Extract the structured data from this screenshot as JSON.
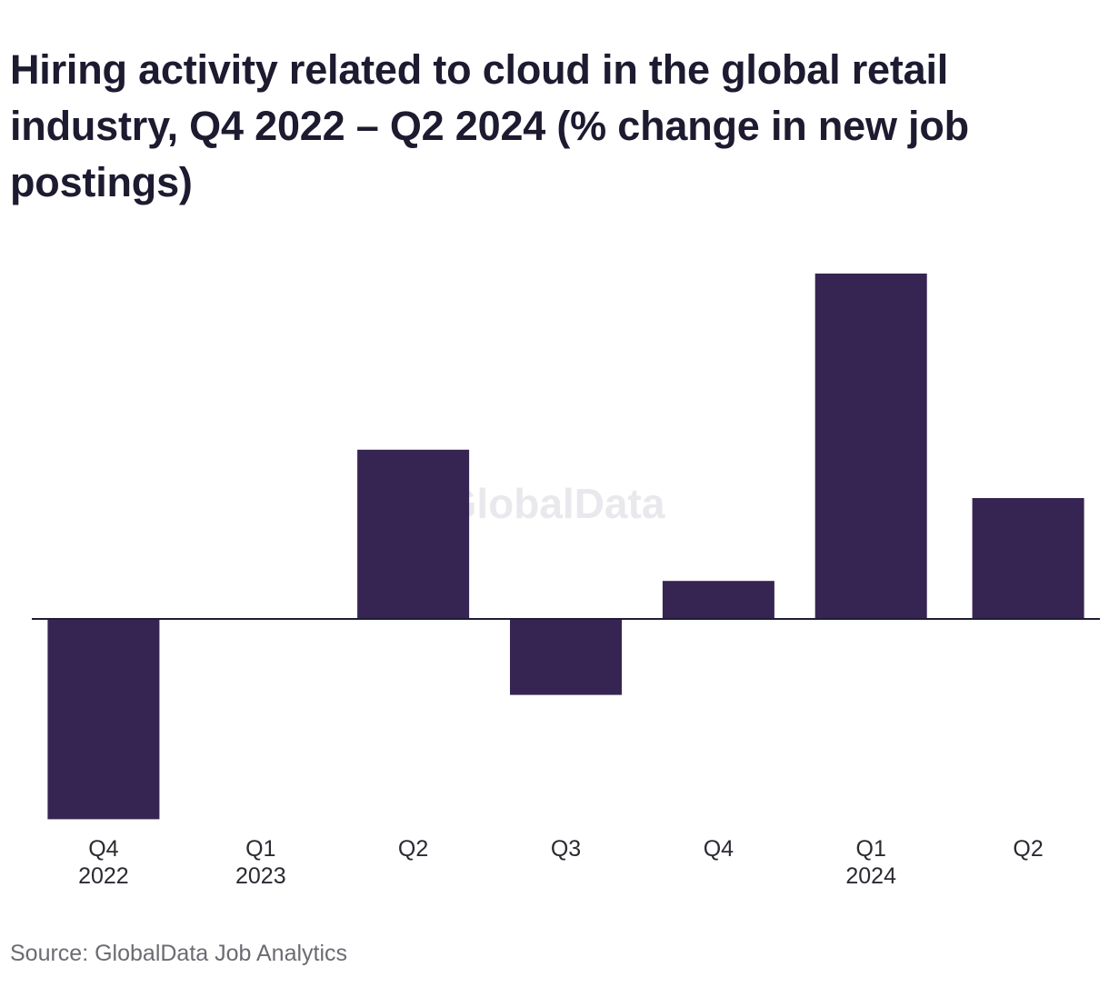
{
  "title": "Hiring activity related to cloud in the global retail industry, Q4 2022 – Q2 2024 (% change in new job postings)",
  "source": "Source: GlobalData Job Analytics",
  "watermark": "GlobalData",
  "colors": {
    "bar": "#362552",
    "axis": "#1f1d33",
    "watermark": "#e9e8ec"
  },
  "chart_data": {
    "type": "bar",
    "title": "Hiring activity related to cloud in the global retail industry, Q4 2022 – Q2 2024 (% change in new job postings)",
    "categories": [
      [
        "Q4",
        "2022"
      ],
      [
        "Q1",
        "2023"
      ],
      [
        "Q2",
        ""
      ],
      [
        "Q3",
        ""
      ],
      [
        "Q4",
        ""
      ],
      [
        "Q1",
        "2024"
      ],
      [
        "Q2",
        ""
      ]
    ],
    "values": [
      -5.8,
      0,
      4.9,
      -2.2,
      1.1,
      10.0,
      3.5
    ],
    "ylim": [
      -6.0,
      10.5
    ],
    "xlabel": "",
    "ylabel": "",
    "grid": false,
    "legend": "none",
    "y_axis_labels_shown": false
  }
}
